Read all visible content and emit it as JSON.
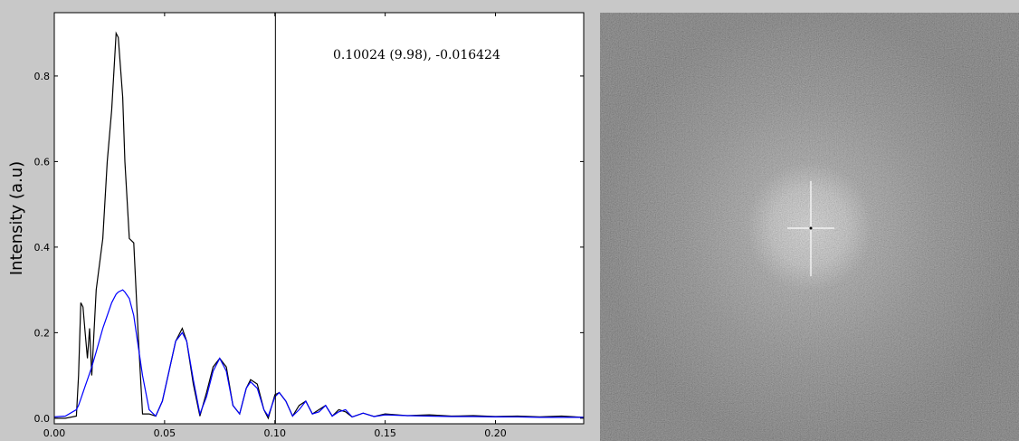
{
  "chart_data": {
    "type": "line",
    "ylabel": "Intensity (a.u)",
    "annotation": "0.10024 (9.98), -0.016424",
    "vline_x": 0.10024,
    "x": [
      0,
      0.005,
      0.01,
      0.011,
      0.012,
      0.013,
      0.014,
      0.015,
      0.016,
      0.017,
      0.019,
      0.022,
      0.024,
      0.026,
      0.028,
      0.029,
      0.031,
      0.032,
      0.034,
      0.036,
      0.038,
      0.04,
      0.043,
      0.046,
      0.049,
      0.052,
      0.055,
      0.058,
      0.06,
      0.063,
      0.066,
      0.069,
      0.072,
      0.075,
      0.078,
      0.081,
      0.084,
      0.087,
      0.089,
      0.092,
      0.095,
      0.097,
      0.1,
      0.102,
      0.105,
      0.108,
      0.111,
      0.114,
      0.117,
      0.12,
      0.123,
      0.126,
      0.129,
      0.132,
      0.135,
      0.14,
      0.145,
      0.15,
      0.16,
      0.17,
      0.18,
      0.19,
      0.2,
      0.21,
      0.22,
      0.23,
      0.24
    ],
    "series": [
      {
        "color": "#000000",
        "values": [
          0,
          0,
          0.005,
          0.1,
          0.27,
          0.26,
          0.2,
          0.14,
          0.21,
          0.1,
          0.3,
          0.42,
          0.6,
          0.72,
          0.9,
          0.89,
          0.75,
          0.6,
          0.42,
          0.41,
          0.2,
          0.01,
          0.01,
          0.005,
          0.04,
          0.11,
          0.18,
          0.21,
          0.18,
          0.08,
          0.005,
          0.06,
          0.12,
          0.14,
          0.12,
          0.03,
          0.01,
          0.07,
          0.09,
          0.08,
          0.02,
          0,
          0.055,
          0.06,
          0.04,
          0.005,
          0.03,
          0.04,
          0.01,
          0.02,
          0.03,
          0.005,
          0.02,
          0.015,
          0.003,
          0.012,
          0.004,
          0.01,
          0.006,
          0.008,
          0.005,
          0.006,
          0.004,
          0.005,
          0.003,
          0.005,
          0.002
        ]
      },
      {
        "color": "#0000ff",
        "values": [
          0.003,
          0.005,
          0.02,
          0.03,
          0.045,
          0.06,
          0.075,
          0.09,
          0.105,
          0.12,
          0.155,
          0.21,
          0.24,
          0.27,
          0.29,
          0.295,
          0.3,
          0.295,
          0.28,
          0.24,
          0.17,
          0.1,
          0.02,
          0.005,
          0.04,
          0.11,
          0.18,
          0.2,
          0.18,
          0.09,
          0.01,
          0.05,
          0.11,
          0.14,
          0.11,
          0.03,
          0.01,
          0.07,
          0.085,
          0.07,
          0.02,
          0.005,
          0.05,
          0.06,
          0.04,
          0.005,
          0.02,
          0.04,
          0.01,
          0.015,
          0.03,
          0.005,
          0.015,
          0.02,
          0.003,
          0.012,
          0.004,
          0.008,
          0.006,
          0.005,
          0.004,
          0.004,
          0.003,
          0.003,
          0.002,
          0.002,
          0.002
        ]
      }
    ],
    "xlim": [
      0,
      0.24
    ],
    "ylim": [
      -0.013,
      0.948
    ],
    "xticks": [
      {
        "value": 0,
        "label": "0.00"
      },
      0.05,
      {
        "value": 0.1,
        "label": "0.10"
      },
      0.15,
      {
        "value": 0.2,
        "label": "0.20"
      }
    ],
    "yticks": [
      {
        "value": 0,
        "label": "0.0"
      },
      0.2,
      0.4,
      0.6,
      0.8
    ]
  }
}
